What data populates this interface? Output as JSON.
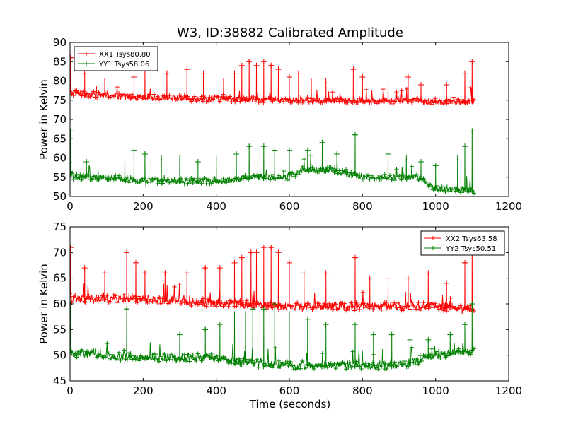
{
  "figure": {
    "title": "W3, ID:38882 Calibrated Amplitude",
    "xlabel": "Time (seconds)"
  },
  "colors": {
    "xx": "#ff0000",
    "yy": "#008000",
    "axes": "#000000",
    "background": "#ffffff"
  },
  "chart_data": [
    {
      "type": "line",
      "ylabel": "Power in Kelvin",
      "xlim": [
        0,
        1200
      ],
      "ylim": [
        50,
        90
      ],
      "xticks": [
        "0",
        "200",
        "400",
        "600",
        "800",
        "1000",
        "1200"
      ],
      "yticks": [
        "50",
        "55",
        "60",
        "65",
        "70",
        "75",
        "80",
        "85",
        "90"
      ],
      "legend_loc": "upper left",
      "grid": false,
      "series": [
        {
          "name": "XX1 Tsys80.80",
          "color": "#ff0000",
          "marker": "+",
          "x_range": [
            0,
            1105
          ],
          "baseline": [
            [
              0,
              77
            ],
            [
              100,
              76.2
            ],
            [
              300,
              75.5
            ],
            [
              600,
              75
            ],
            [
              900,
              74.8
            ],
            [
              1105,
              74.5
            ]
          ],
          "spikes": [
            [
              2,
              86
            ],
            [
              40,
              82
            ],
            [
              95,
              80
            ],
            [
              175,
              81
            ],
            [
              205,
              83
            ],
            [
              265,
              82
            ],
            [
              320,
              83
            ],
            [
              365,
              82
            ],
            [
              420,
              80
            ],
            [
              450,
              82
            ],
            [
              470,
              84
            ],
            [
              490,
              85
            ],
            [
              510,
              84
            ],
            [
              530,
              85
            ],
            [
              550,
              84
            ],
            [
              570,
              83
            ],
            [
              600,
              81
            ],
            [
              625,
              82
            ],
            [
              660,
              80
            ],
            [
              700,
              80
            ],
            [
              775,
              83
            ],
            [
              800,
              81
            ],
            [
              870,
              80
            ],
            [
              925,
              81
            ],
            [
              960,
              79
            ],
            [
              1030,
              79
            ],
            [
              1080,
              82
            ],
            [
              1100,
              85
            ]
          ]
        },
        {
          "name": "YY1 Tsys58.06",
          "color": "#008000",
          "marker": "+",
          "x_range": [
            0,
            1105
          ],
          "baseline": [
            [
              0,
              55
            ],
            [
              100,
              55
            ],
            [
              200,
              54
            ],
            [
              300,
              54
            ],
            [
              400,
              54
            ],
            [
              500,
              55
            ],
            [
              600,
              55
            ],
            [
              650,
              57
            ],
            [
              700,
              57
            ],
            [
              800,
              55
            ],
            [
              900,
              55
            ],
            [
              950,
              55
            ],
            [
              1000,
              52
            ],
            [
              1105,
              51.5
            ]
          ],
          "spikes": [
            [
              2,
              67
            ],
            [
              45,
              59
            ],
            [
              150,
              60
            ],
            [
              175,
              62
            ],
            [
              205,
              61
            ],
            [
              250,
              60
            ],
            [
              300,
              60
            ],
            [
              350,
              59
            ],
            [
              400,
              60
            ],
            [
              455,
              61
            ],
            [
              490,
              63
            ],
            [
              530,
              63
            ],
            [
              560,
              62
            ],
            [
              600,
              62
            ],
            [
              650,
              62
            ],
            [
              690,
              64
            ],
            [
              730,
              61
            ],
            [
              780,
              66
            ],
            [
              870,
              61
            ],
            [
              920,
              60
            ],
            [
              960,
              59
            ],
            [
              1000,
              58
            ],
            [
              1060,
              60
            ],
            [
              1080,
              63
            ],
            [
              1100,
              67
            ]
          ]
        }
      ]
    },
    {
      "type": "line",
      "ylabel": "Power in Kelvin",
      "xlabel": "Time (seconds)",
      "xlim": [
        0,
        1200
      ],
      "ylim": [
        45,
        75
      ],
      "xticks": [
        "0",
        "200",
        "400",
        "600",
        "800",
        "1000",
        "1200"
      ],
      "yticks": [
        "45",
        "50",
        "55",
        "60",
        "65",
        "70",
        "75"
      ],
      "legend_loc": "upper right",
      "grid": false,
      "series": [
        {
          "name": "XX2 Tsys63.58",
          "color": "#ff0000",
          "marker": "+",
          "x_range": [
            0,
            1105
          ],
          "baseline": [
            [
              0,
              61
            ],
            [
              200,
              61
            ],
            [
              300,
              60.5
            ],
            [
              450,
              60
            ],
            [
              600,
              59.5
            ],
            [
              800,
              59.5
            ],
            [
              1000,
              59.5
            ],
            [
              1105,
              59
            ]
          ],
          "spikes": [
            [
              2,
              71
            ],
            [
              40,
              67
            ],
            [
              95,
              66
            ],
            [
              155,
              70
            ],
            [
              180,
              68
            ],
            [
              205,
              66
            ],
            [
              260,
              66
            ],
            [
              320,
              66
            ],
            [
              370,
              67
            ],
            [
              410,
              67
            ],
            [
              450,
              68
            ],
            [
              470,
              69
            ],
            [
              495,
              70
            ],
            [
              510,
              70
            ],
            [
              530,
              71
            ],
            [
              550,
              71
            ],
            [
              570,
              70
            ],
            [
              600,
              68
            ],
            [
              640,
              66
            ],
            [
              700,
              66
            ],
            [
              780,
              69
            ],
            [
              820,
              65
            ],
            [
              870,
              65
            ],
            [
              925,
              65
            ],
            [
              980,
              66
            ],
            [
              1030,
              64
            ],
            [
              1080,
              68
            ],
            [
              1100,
              71
            ]
          ]
        },
        {
          "name": "YY2 Tsys50.51",
          "color": "#008000",
          "marker": "+",
          "x_range": [
            0,
            1105
          ],
          "baseline": [
            [
              0,
              50.5
            ],
            [
              100,
              50
            ],
            [
              200,
              49.5
            ],
            [
              300,
              49.5
            ],
            [
              400,
              49.5
            ],
            [
              500,
              48.5
            ],
            [
              600,
              48
            ],
            [
              800,
              48
            ],
            [
              900,
              48
            ],
            [
              1000,
              50
            ],
            [
              1100,
              51
            ]
          ],
          "spikes": [
            [
              2,
              60
            ],
            [
              155,
              59
            ],
            [
              300,
              54
            ],
            [
              370,
              55
            ],
            [
              410,
              56
            ],
            [
              450,
              58
            ],
            [
              480,
              58
            ],
            [
              500,
              59
            ],
            [
              530,
              59
            ],
            [
              560,
              60
            ],
            [
              600,
              58
            ],
            [
              650,
              57
            ],
            [
              700,
              56
            ],
            [
              780,
              56
            ],
            [
              830,
              54
            ],
            [
              880,
              54
            ],
            [
              930,
              53
            ],
            [
              980,
              53
            ],
            [
              1040,
              54
            ],
            [
              1080,
              56
            ],
            [
              1100,
              60
            ]
          ]
        }
      ]
    }
  ]
}
